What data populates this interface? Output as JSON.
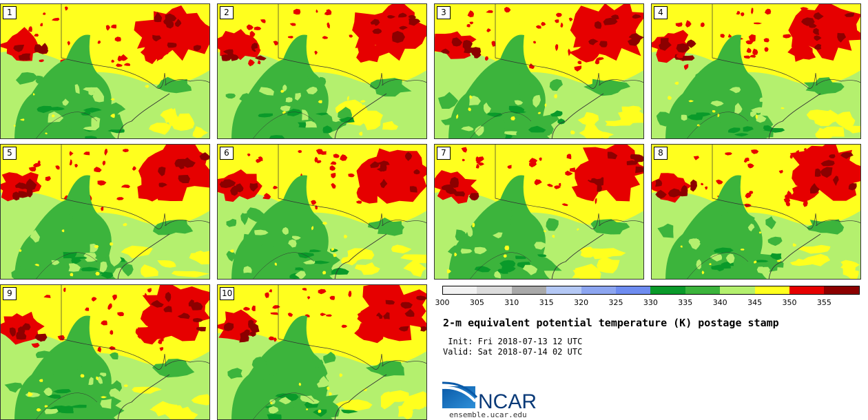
{
  "stamps": [
    {
      "label": "1"
    },
    {
      "label": "2"
    },
    {
      "label": "3"
    },
    {
      "label": "4"
    },
    {
      "label": "5"
    },
    {
      "label": "6"
    },
    {
      "label": "7"
    },
    {
      "label": "8"
    },
    {
      "label": "9"
    },
    {
      "label": "10"
    }
  ],
  "colorbar": {
    "ticks": [
      "300",
      "305",
      "310",
      "315",
      "320",
      "325",
      "330",
      "335",
      "340",
      "345",
      "350",
      "355"
    ],
    "colors": [
      "#f2f2f2",
      "#dcdcdc",
      "#a9a9a9",
      "#b4c8f5",
      "#8ca5f0",
      "#6e8cf0",
      "#0a9a2a",
      "#3cb43c",
      "#b4f06e",
      "#ffff1e",
      "#e60000",
      "#8c0000"
    ]
  },
  "title": "2-m equivalent potential temperature (K) postage stamp",
  "init": " Init: Fri 2018-07-13 12 UTC",
  "valid": "Valid: Sat 2018-07-14 02 UTC",
  "logo": {
    "text": "NCAR",
    "url": "ensemble.ucar.edu"
  },
  "palette": {
    "light_green": "#b4f06e",
    "green": "#3cb43c",
    "dark_green": "#0a9a2a",
    "yellow": "#ffff1e",
    "red": "#e60000",
    "dark_red": "#8c0000"
  }
}
